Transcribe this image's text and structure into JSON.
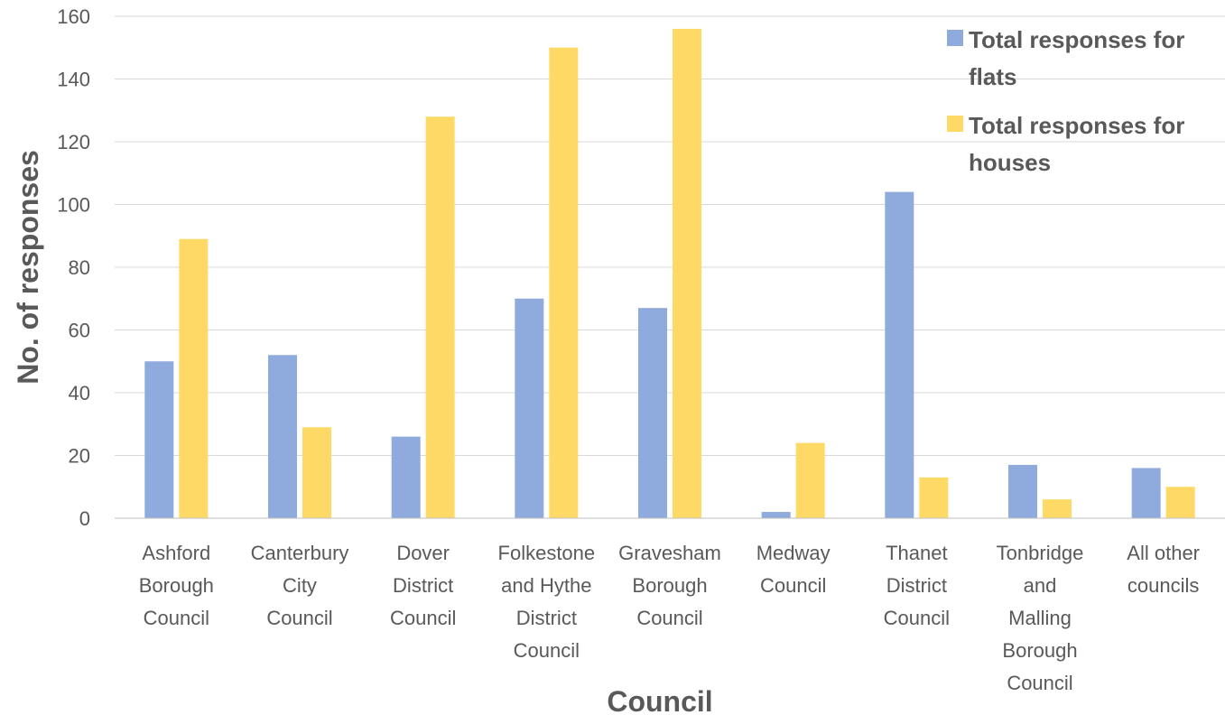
{
  "chart_data": {
    "type": "bar",
    "title": "",
    "xlabel": "Council",
    "ylabel": "No. of responses",
    "ylim": [
      0,
      160
    ],
    "yticks": [
      0,
      20,
      40,
      60,
      80,
      100,
      120,
      140,
      160
    ],
    "grid": true,
    "legend_position": "top-right",
    "categories": [
      [
        "Ashford",
        "Borough",
        "Council"
      ],
      [
        "Canterbury",
        "City",
        "Council"
      ],
      [
        "Dover",
        "District",
        "Council"
      ],
      [
        "Folkestone",
        "and Hythe",
        "District",
        "Council"
      ],
      [
        "Gravesham",
        "Borough",
        "Council"
      ],
      [
        "Medway",
        "Council"
      ],
      [
        "Thanet",
        "District",
        "Council"
      ],
      [
        "Tonbridge",
        "and",
        "Malling",
        "Borough",
        "Council"
      ],
      [
        "All other",
        "councils"
      ]
    ],
    "series": [
      {
        "name": "Total responses for flats",
        "legend_lines": [
          "Total responses for",
          "flats"
        ],
        "color": "#8faadc",
        "values": [
          50,
          52,
          26,
          70,
          67,
          2,
          104,
          17,
          16
        ]
      },
      {
        "name": "Total responses for houses",
        "legend_lines": [
          "Total responses for",
          "houses"
        ],
        "color": "#ffd966",
        "values": [
          89,
          29,
          128,
          150,
          156,
          24,
          13,
          6,
          10
        ]
      }
    ]
  }
}
